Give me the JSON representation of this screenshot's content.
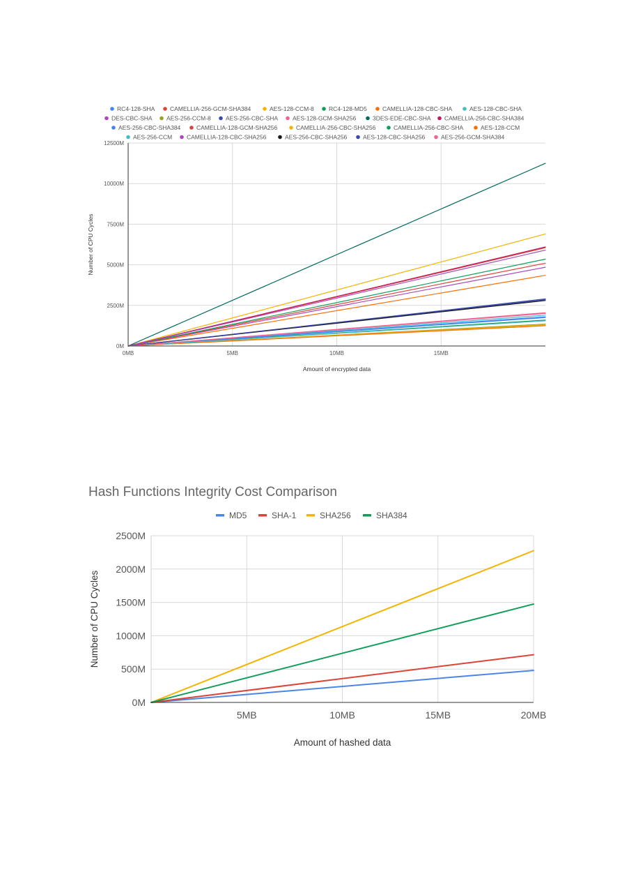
{
  "chart_data": [
    {
      "type": "line",
      "title": "",
      "xlabel": "Amount of encrypted data",
      "ylabel": "Number of CPU Cycles",
      "x_unit": "MB",
      "y_unit": "M",
      "xlim": [
        0,
        20
      ],
      "ylim": [
        0,
        12500
      ],
      "x_ticks": [
        0,
        5,
        10,
        15
      ],
      "y_ticks": [
        0,
        2500,
        5000,
        7500,
        10000,
        12500
      ],
      "x_tick_labels": [
        "0MB",
        "5MB",
        "10MB",
        "15MB"
      ],
      "y_tick_labels": [
        "0M",
        "2500M",
        "5000M",
        "7500M",
        "10000M",
        "12500M"
      ],
      "grid": true,
      "legend_position": "top",
      "x": [
        0,
        20
      ],
      "series": [
        {
          "name": "RC4-128-SHA",
          "color": "#4285f4",
          "values": [
            0,
            1750
          ]
        },
        {
          "name": "CAMELLIA-256-GCM-SHA384",
          "color": "#db4437",
          "values": [
            0,
            6050
          ]
        },
        {
          "name": "AES-128-CCM-8",
          "color": "#f4b400",
          "values": [
            0,
            6900
          ]
        },
        {
          "name": "RC4-128-MD5",
          "color": "#0f9d58",
          "values": [
            0,
            1600
          ]
        },
        {
          "name": "CAMELLIA-128-CBC-SHA",
          "color": "#ff6d00",
          "values": [
            0,
            4350
          ]
        },
        {
          "name": "AES-128-CBC-SHA",
          "color": "#46bdc6",
          "values": [
            0,
            1900
          ]
        },
        {
          "name": "DES-CBC-SHA",
          "color": "#ab47bc",
          "values": [
            0,
            4850
          ]
        },
        {
          "name": "AES-256-CCM-8",
          "color": "#9e9d24",
          "values": [
            0,
            1350
          ]
        },
        {
          "name": "AES-256-CBC-SHA",
          "color": "#3949ab",
          "values": [
            0,
            2850
          ]
        },
        {
          "name": "AES-128-GCM-SHA256",
          "color": "#f06292",
          "values": [
            0,
            2050
          ]
        },
        {
          "name": "3DES-EDE-CBC-SHA",
          "color": "#00695c",
          "values": [
            0,
            11250
          ]
        },
        {
          "name": "CAMELLIA-256-CBC-SHA384",
          "color": "#c2185b",
          "values": [
            0,
            6100
          ]
        },
        {
          "name": "AES-256-CBC-SHA384",
          "color": "#4285f4",
          "values": [
            0,
            1800
          ]
        },
        {
          "name": "CAMELLIA-128-GCM-SHA256",
          "color": "#db4437",
          "values": [
            0,
            5100
          ]
        },
        {
          "name": "CAMELLIA-256-CBC-SHA256",
          "color": "#f4b400",
          "values": [
            0,
            1300
          ]
        },
        {
          "name": "CAMELLIA-256-CBC-SHA",
          "color": "#0f9d58",
          "values": [
            0,
            5350
          ]
        },
        {
          "name": "AES-128-CCM",
          "color": "#ff6d00",
          "values": [
            0,
            1250
          ]
        },
        {
          "name": "AES-256-CCM",
          "color": "#46bdc6",
          "values": [
            0,
            1550
          ]
        },
        {
          "name": "CAMELLIA-128-CBC-SHA256",
          "color": "#ab47bc",
          "values": [
            0,
            5900
          ]
        },
        {
          "name": "AES-256-CBC-SHA256",
          "color": "#1a1a1a",
          "values": [
            0,
            2800
          ]
        },
        {
          "name": "AES-128-CBC-SHA256",
          "color": "#3949ab",
          "values": [
            0,
            2900
          ]
        },
        {
          "name": "AES-256-GCM-SHA384",
          "color": "#f06292",
          "values": [
            0,
            2000
          ]
        }
      ]
    },
    {
      "type": "line",
      "title": "Hash Functions Integrity Cost Comparison",
      "xlabel": "Amount of hashed data",
      "ylabel": "Number of CPU Cycles",
      "x_unit": "MB",
      "y_unit": "M",
      "xlim": [
        0,
        20
      ],
      "ylim": [
        0,
        2500
      ],
      "x_ticks": [
        5,
        10,
        15,
        20
      ],
      "y_ticks": [
        0,
        500,
        1000,
        1500,
        2000,
        2500
      ],
      "x_tick_labels": [
        "5MB",
        "10MB",
        "15MB",
        "20MB"
      ],
      "y_tick_labels": [
        "0M",
        "500M",
        "1000M",
        "1500M",
        "2000M",
        "2500M"
      ],
      "grid": true,
      "legend_position": "top",
      "x": [
        0,
        20
      ],
      "series": [
        {
          "name": "MD5",
          "color": "#4a86e8",
          "values": [
            0,
            480
          ]
        },
        {
          "name": "SHA-1",
          "color": "#db4437",
          "values": [
            0,
            715
          ]
        },
        {
          "name": "SHA256",
          "color": "#f4b400",
          "values": [
            0,
            2275
          ]
        },
        {
          "name": "SHA384",
          "color": "#0f9d58",
          "values": [
            0,
            1475
          ]
        }
      ]
    }
  ]
}
